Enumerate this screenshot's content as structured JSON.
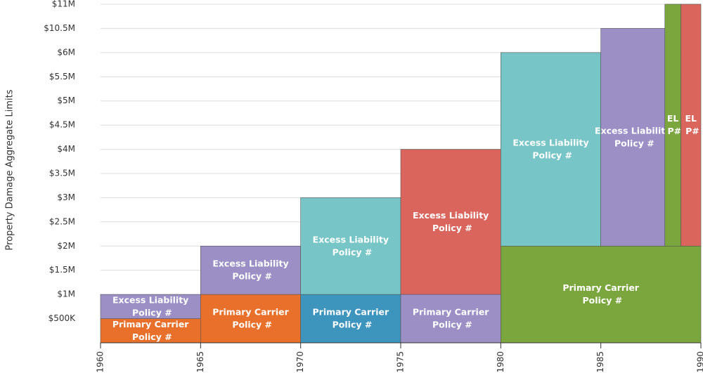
{
  "chart_data": {
    "type": "bar",
    "y_label": "Property Damage Aggregate Limits",
    "xlim": [
      1960,
      1990
    ],
    "xticks": [
      1960,
      1965,
      1970,
      1975,
      1980,
      1985,
      1990
    ],
    "ylim": [
      0,
      11000000
    ],
    "yticks": [
      {
        "value": 500000,
        "label": "$500K"
      },
      {
        "value": 1000000,
        "label": "$1M"
      },
      {
        "value": 1500000,
        "label": "$1.5M"
      },
      {
        "value": 2000000,
        "label": "$2M"
      },
      {
        "value": 2500000,
        "label": "$2.5M"
      },
      {
        "value": 3000000,
        "label": "$3M"
      },
      {
        "value": 3500000,
        "label": "$3.5M"
      },
      {
        "value": 4000000,
        "label": "$4M"
      },
      {
        "value": 4500000,
        "label": "$4.5M"
      },
      {
        "value": 5000000,
        "label": "$5M"
      },
      {
        "value": 5500000,
        "label": "$5.5M"
      },
      {
        "value": 6000000,
        "label": "$6M"
      },
      {
        "value": 10500000,
        "label": "$10.5M"
      },
      {
        "value": 11000000,
        "label": "$11M"
      }
    ],
    "grid": true,
    "blocks": [
      {
        "label": "Primary Carrier Policy #",
        "x": [
          1960,
          1965
        ],
        "value": 500000,
        "color": "#e8702a"
      },
      {
        "label": "Excess Liability Policy #",
        "x": [
          1960,
          1965
        ],
        "value": 500000,
        "color": "#9b8fc6"
      },
      {
        "label": "Primary Carrier Policy #",
        "x": [
          1965,
          1970
        ],
        "value": 1000000,
        "color": "#e8702a"
      },
      {
        "label": "Excess Liability Policy #",
        "x": [
          1965,
          1970
        ],
        "value": 1000000,
        "color": "#9b8fc6"
      },
      {
        "label": "Primary Carrier Policy #",
        "x": [
          1970,
          1975
        ],
        "value": 1000000,
        "color": "#3d94bd"
      },
      {
        "label": "Excess Liability Policy #",
        "x": [
          1970,
          1975
        ],
        "value": 2000000,
        "color": "#77c5c6"
      },
      {
        "label": "Primary Carrier Policy #",
        "x": [
          1975,
          1980
        ],
        "value": 1000000,
        "color": "#9b8fc6"
      },
      {
        "label": "Excess Liability Policy #",
        "x": [
          1975,
          1980
        ],
        "value": 3000000,
        "color": "#d9655c"
      },
      {
        "label": "Primary Carrier Policy #",
        "x": [
          1980,
          1990
        ],
        "value": 2000000,
        "color": "#7ba63e"
      },
      {
        "label": "Excess Liability Policy #",
        "x": [
          1980,
          1985
        ],
        "value": 4000000,
        "color": "#77c5c6"
      },
      {
        "label": "Excess Liability Policy #",
        "x": [
          1985,
          1988.2
        ],
        "value": 8500000,
        "color": "#9b8fc6"
      },
      {
        "label": "EL P#",
        "x": [
          1988.2,
          1989
        ],
        "value": 9000000,
        "color": "#7ba63e"
      },
      {
        "label": "EL P#",
        "x": [
          1989,
          1990
        ],
        "value": 9000000,
        "color": "#d9655c"
      }
    ]
  }
}
